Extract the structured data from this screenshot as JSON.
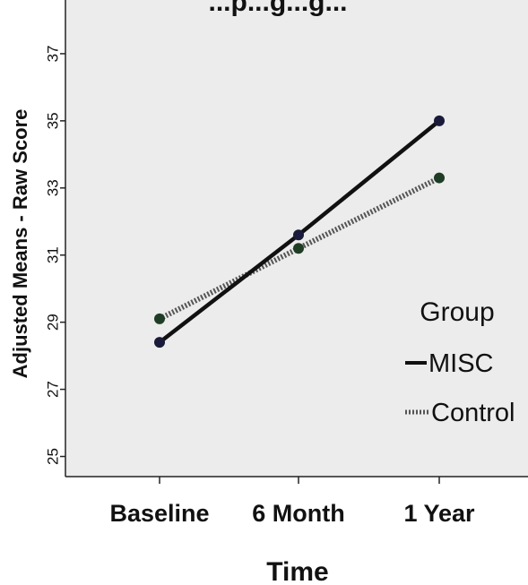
{
  "chart_data": {
    "type": "line",
    "title": "...p...g...g...",
    "xlabel": "Time",
    "ylabel": "Adjusted Means - Raw Score",
    "categories": [
      "Baseline",
      "6 Month",
      "1 Year"
    ],
    "ylim": [
      24.4,
      38.6
    ],
    "yticks": [
      25,
      27,
      29,
      31,
      33,
      35,
      37
    ],
    "grid": false,
    "legend": {
      "title": "Group",
      "placement": "right"
    },
    "series": [
      {
        "name": "MISC",
        "values": [
          28.4,
          31.6,
          35.0
        ],
        "color": "#111111",
        "style": "solid"
      },
      {
        "name": "Control",
        "values": [
          29.1,
          31.2,
          33.3
        ],
        "color": "#555555",
        "style": "dotted",
        "marker_color": "#1e3d24"
      }
    ],
    "colors": {
      "plot_background": "#ececec",
      "axis": "#222222"
    }
  }
}
